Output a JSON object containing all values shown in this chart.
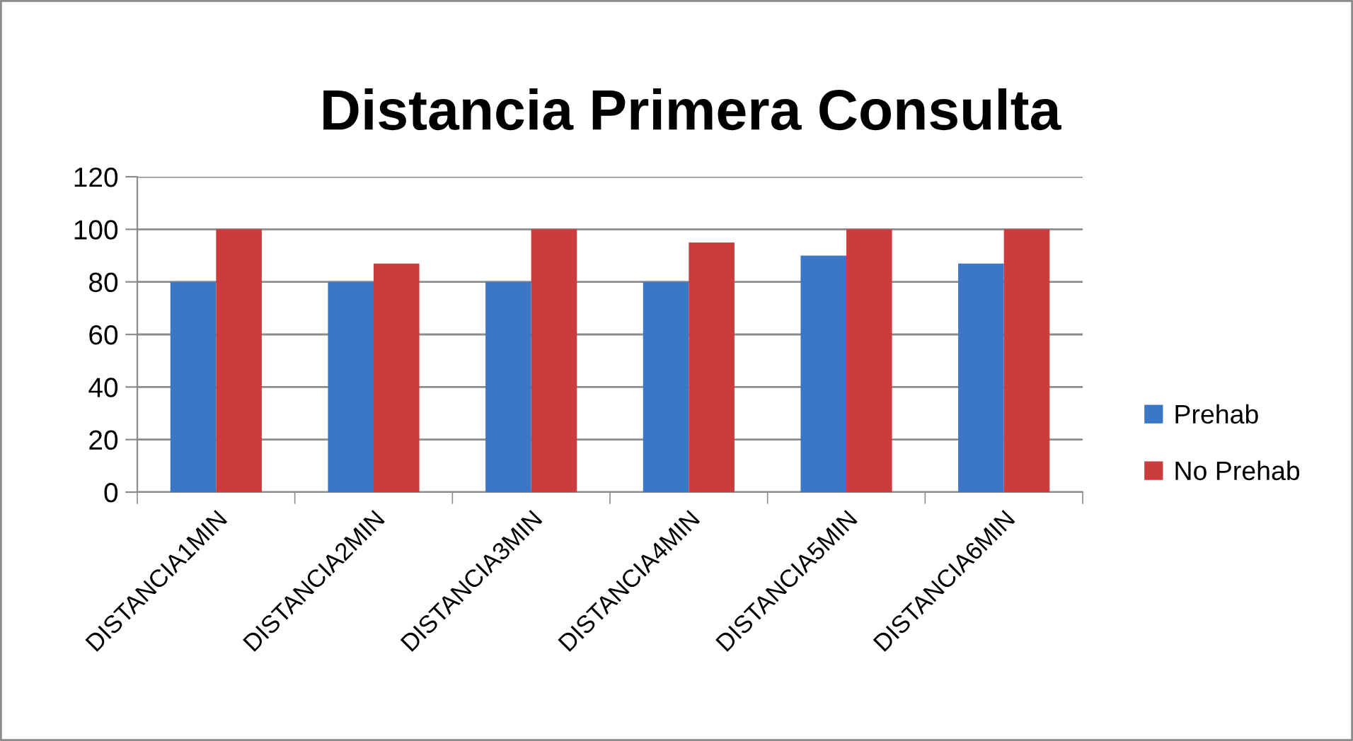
{
  "chart_data": {
    "type": "bar",
    "title": "Distancia Primera Consulta",
    "categories": [
      "DISTANCIA1MIN",
      "DISTANCIA2MIN",
      "DISTANCIA3MIN",
      "DISTANCIA4MIN",
      "DISTANCIA5MIN",
      "DISTANCIA6MIN"
    ],
    "series": [
      {
        "name": "Prehab",
        "color": "#3a78c6",
        "values": [
          80,
          80,
          80,
          80,
          90,
          87
        ]
      },
      {
        "name": "No Prehab",
        "color": "#cc3c3c",
        "values": [
          100,
          87,
          100,
          95,
          100,
          100
        ]
      }
    ],
    "ylim": [
      0,
      120
    ],
    "yticks": [
      0,
      20,
      40,
      60,
      80,
      100,
      120
    ],
    "grid": "y",
    "legend": "right"
  }
}
